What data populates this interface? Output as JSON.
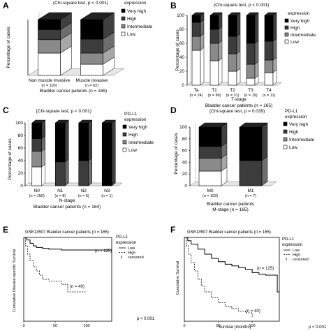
{
  "panels": {
    "A": {
      "letter": "A",
      "test": "(Chi-square test, p < 0.001)",
      "legend_title": "expression",
      "patients": "Bladder cancer patients (n = 165)",
      "ylabel": "Percentage of cases"
    },
    "B": {
      "letter": "B",
      "test": "(Chi-square test, p < 0.001)",
      "legend_title": "expression",
      "stage_label": "T-stage",
      "patients": "Bladder cancer patients (n = 165)",
      "ylabel": "Percentage of cases"
    },
    "C": {
      "letter": "C",
      "test": "[Chi-square test, p < 0.001)",
      "legend_title_1": "PD-L1",
      "legend_title_2": "expression",
      "stage_label": "N-stage",
      "patients": "Bladder cancer patients (n = 164)",
      "ylabel": "Percentage of cases"
    },
    "D": {
      "letter": "D",
      "test": "(Chi-square test, p = 0.039)",
      "legend_title_1": "PD-L1",
      "legend_title_2": "expression",
      "patients": "Bladder cancer patients",
      "stage_label": "M-stage (n = 165)",
      "ylabel": "Percentage of cases"
    },
    "E": {
      "letter": "E",
      "title": "GSE13507 Bladder cancer patients (n = 165)",
      "legend_title_1": "PD-L1",
      "legend_title_2": "expression",
      "ylabel": "Cumulative Disease-specific Survival",
      "pvalue": "p < 0.001",
      "n_low": "(n = 125)",
      "n_high": "(n = 40)"
    },
    "F": {
      "letter": "F",
      "title": "GSE13507 Bladder cancer patients (n = 165)",
      "legend_title_1": "PD-L1",
      "legend_title_2": "expression",
      "ylabel": "Cumulative Survival",
      "xlabel": "Survival (months)",
      "pvalue": "p < 0.001",
      "n_low": "(n = 125)",
      "n_high": "(n = 40)"
    }
  },
  "legend_levels": [
    "Very high",
    "High",
    "Intermediate",
    "Low"
  ],
  "km_legend": {
    "low": "Low",
    "high": "High",
    "censored": "censored"
  },
  "colors": {
    "very_high": "#000000",
    "high": "#3c3c3c",
    "intermediate": "#8a8a8a",
    "low": "#ffffff"
  },
  "chart_data": [
    {
      "type": "bar",
      "stacked": true,
      "panel": "A",
      "categories": [
        "Non muscle invasive",
        "Muscle invasive"
      ],
      "category_n": [
        "(n = 103)",
        "(n = 62)"
      ],
      "series": [
        {
          "name": "Low",
          "values": [
            40,
            20
          ]
        },
        {
          "name": "Intermediate",
          "values": [
            24,
            20
          ]
        },
        {
          "name": "High",
          "values": [
            18,
            25
          ]
        },
        {
          "name": "Very high",
          "values": [
            18,
            35
          ]
        }
      ],
      "ylim": [
        0,
        100
      ]
    },
    {
      "type": "bar",
      "stacked": true,
      "panel": "B",
      "categories": [
        "Ta",
        "T1",
        "T2",
        "T3",
        "T4"
      ],
      "category_n": [
        "(n = 24)",
        "(n = 80)",
        "(n = 31)",
        "(n = 19)",
        "(n = 11)"
      ],
      "series": [
        {
          "name": "Low",
          "values": [
            50,
            35,
            20,
            10,
            18
          ]
        },
        {
          "name": "Intermediate",
          "values": [
            20,
            25,
            25,
            20,
            18
          ]
        },
        {
          "name": "High",
          "values": [
            20,
            20,
            25,
            30,
            27
          ]
        },
        {
          "name": "Very high",
          "values": [
            10,
            20,
            30,
            40,
            37
          ]
        }
      ],
      "ylim": [
        0,
        100
      ],
      "yticks": [
        0,
        20,
        40,
        60,
        80,
        100
      ]
    },
    {
      "type": "bar",
      "stacked": true,
      "panel": "C",
      "categories": [
        "N0",
        "N1",
        "N2",
        "N3"
      ],
      "category_n": [
        "(n = 150)",
        "(n = 8)",
        "(n = 5)",
        "(n = 1)"
      ],
      "series": [
        {
          "name": "Low",
          "values": [
            30,
            0,
            0,
            0
          ]
        },
        {
          "name": "Intermediate",
          "values": [
            25,
            0,
            0,
            0
          ]
        },
        {
          "name": "High",
          "values": [
            20,
            38,
            40,
            0
          ]
        },
        {
          "name": "Very high",
          "values": [
            25,
            62,
            60,
            100
          ]
        }
      ],
      "ylim": [
        0,
        100
      ],
      "yticks": [
        0,
        20,
        40,
        60,
        80,
        100
      ]
    },
    {
      "type": "bar",
      "stacked": true,
      "panel": "D",
      "categories": [
        "M0",
        "M1"
      ],
      "category_n": [
        "(n = 103)",
        "(n = 7)"
      ],
      "series": [
        {
          "name": "Low",
          "values": [
            25,
            0
          ]
        },
        {
          "name": "Intermediate",
          "values": [
            22,
            0
          ]
        },
        {
          "name": "High",
          "values": [
            20,
            43
          ]
        },
        {
          "name": "Very high",
          "values": [
            33,
            57
          ]
        }
      ],
      "ylim": [
        0,
        100
      ],
      "yticks": [
        0,
        20,
        40,
        60,
        80,
        100
      ]
    },
    {
      "type": "line",
      "panel": "E",
      "xlim": [
        0,
        140
      ],
      "ylim": [
        0,
        1
      ],
      "xticks": [
        0,
        50,
        100
      ],
      "series": [
        {
          "name": "Low",
          "x": [
            0,
            5,
            10,
            15,
            20,
            30,
            40,
            60,
            80,
            100,
            120,
            140
          ],
          "y": [
            1.0,
            0.97,
            0.93,
            0.9,
            0.88,
            0.87,
            0.86,
            0.85,
            0.85,
            0.85,
            0.85,
            0.85
          ]
        },
        {
          "name": "High",
          "x": [
            0,
            3,
            6,
            10,
            15,
            20,
            25,
            30,
            40,
            50,
            60,
            70,
            80,
            100
          ],
          "y": [
            1.0,
            0.9,
            0.8,
            0.72,
            0.65,
            0.6,
            0.55,
            0.5,
            0.48,
            0.48,
            0.44,
            0.35,
            0.35,
            0.35
          ]
        }
      ]
    },
    {
      "type": "line",
      "panel": "F",
      "xlim": [
        0,
        140
      ],
      "ylim": [
        0,
        1
      ],
      "xticks": [
        0,
        50,
        100
      ],
      "series": [
        {
          "name": "Low",
          "x": [
            0,
            5,
            10,
            20,
            30,
            40,
            50,
            60,
            70,
            80,
            90,
            100,
            110,
            120,
            130,
            136,
            137,
            140
          ],
          "y": [
            1.0,
            0.96,
            0.92,
            0.86,
            0.8,
            0.75,
            0.71,
            0.68,
            0.66,
            0.64,
            0.62,
            0.58,
            0.56,
            0.55,
            0.55,
            0.55,
            0.35,
            0.35
          ]
        },
        {
          "name": "High",
          "x": [
            0,
            3,
            6,
            10,
            15,
            20,
            25,
            30,
            40,
            50,
            60,
            70,
            80,
            90,
            100
          ],
          "y": [
            1.0,
            0.9,
            0.8,
            0.7,
            0.6,
            0.5,
            0.42,
            0.35,
            0.28,
            0.22,
            0.18,
            0.15,
            0.12,
            0.1,
            0.05
          ]
        }
      ]
    }
  ]
}
